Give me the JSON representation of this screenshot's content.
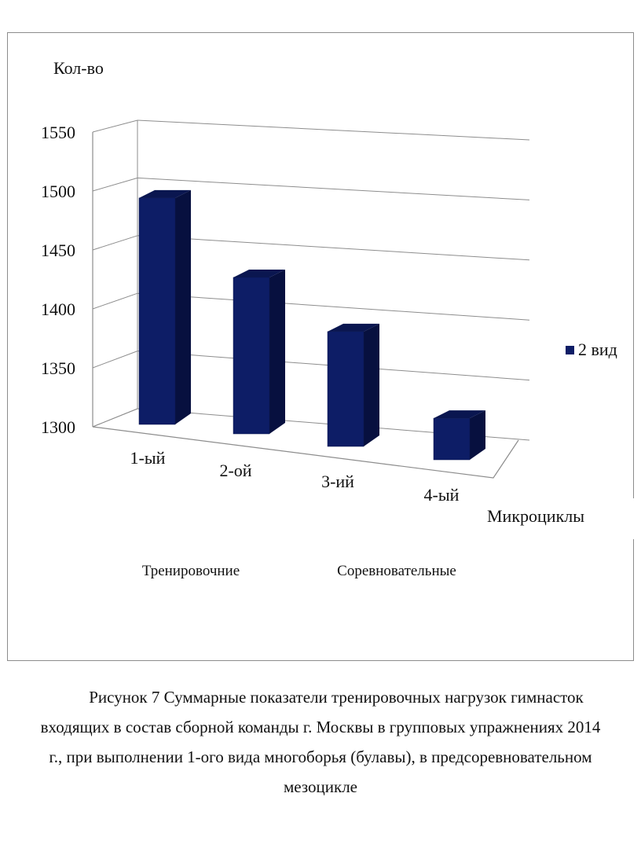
{
  "chart_data": {
    "type": "bar",
    "ylabel": "Кол-во",
    "xlabel": "Микроциклы",
    "categories": [
      "1-ый",
      "2-ой",
      "3-ий",
      "4-ый"
    ],
    "series": [
      {
        "name": "2 вид",
        "values": [
          1507,
          1443,
          1405,
          1338
        ],
        "color": "#0d1d66"
      }
    ],
    "ylim": [
      1300,
      1550
    ],
    "yticks": [
      1300,
      1350,
      1400,
      1450,
      1500,
      1550
    ],
    "grid": true,
    "style": "3d-column",
    "legend_position": "right",
    "group_labels": [
      "Тренировочние",
      "Соревновательные"
    ]
  },
  "caption": {
    "lines": [
      "Рисунок 7  Суммарные показатели тренировочных нагрузок гимнасток",
      "входящих в состав сборной команды г. Москвы в групповых упражнениях 2014",
      "г., при выполнении 1-ого вида многоборья (булавы), в предсоревновательном",
      "мезоцикле"
    ]
  }
}
